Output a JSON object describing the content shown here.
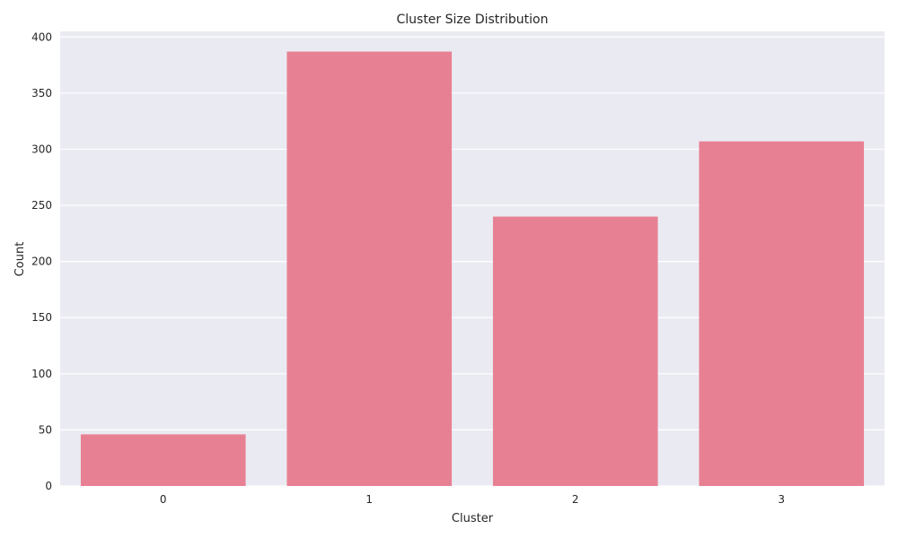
{
  "chart_data": {
    "type": "bar",
    "title": "Cluster Size Distribution",
    "xlabel": "Cluster",
    "ylabel": "Count",
    "categories": [
      "0",
      "1",
      "2",
      "3"
    ],
    "values": [
      46,
      387,
      240,
      307
    ],
    "ylim": [
      0,
      405
    ],
    "yticks": [
      "0",
      "50",
      "100",
      "150",
      "200",
      "250",
      "300",
      "350",
      "400"
    ],
    "grid": true,
    "legend": "none",
    "colors": {
      "bar": "#e88093",
      "plot_background": "#eaeaf2",
      "grid": "#ffffff",
      "text": "#262626"
    }
  }
}
